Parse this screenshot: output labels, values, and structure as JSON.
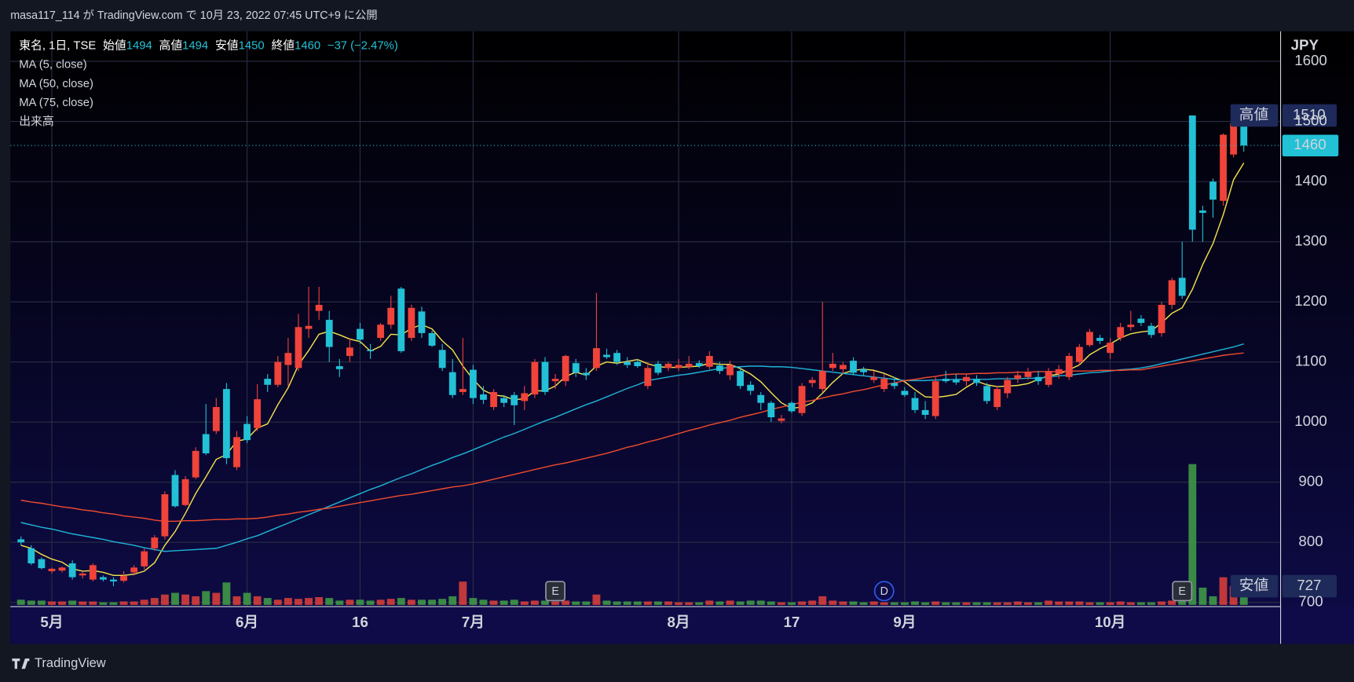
{
  "chart_data": {
    "type": "candlestick",
    "header": "masa117_114 が TradingView.com で 10月 23, 2022 07:45 UTC+9 に公開",
    "symbol": "東名, 1日, TSE",
    "legend_fields": [
      {
        "label": "始値",
        "value": 1494
      },
      {
        "label": "高値",
        "value": 1494
      },
      {
        "label": "安値",
        "value": 1450
      },
      {
        "label": "終値",
        "value": 1460
      }
    ],
    "change_label": "−37 (−2.47%)",
    "currency": "JPY",
    "brand": "TradingView",
    "rise_color": "#f0433a",
    "fall_color": "#22c1d6",
    "grid": true,
    "ylim": [
      693,
      1650
    ],
    "yticks": [
      700,
      800,
      900,
      1000,
      1100,
      1200,
      1300,
      1400,
      1500,
      1600
    ],
    "categories": [
      null,
      null,
      null,
      "5月",
      null,
      null,
      null,
      null,
      null,
      null,
      null,
      null,
      null,
      null,
      null,
      null,
      null,
      null,
      null,
      null,
      null,
      null,
      "6月",
      null,
      null,
      null,
      null,
      null,
      null,
      null,
      null,
      null,
      null,
      "16",
      null,
      null,
      null,
      null,
      null,
      null,
      null,
      null,
      null,
      null,
      "7月",
      null,
      null,
      null,
      null,
      null,
      null,
      null,
      null,
      null,
      null,
      null,
      null,
      null,
      null,
      null,
      null,
      null,
      null,
      null,
      "8月",
      null,
      null,
      null,
      null,
      null,
      null,
      null,
      null,
      null,
      null,
      "17",
      null,
      null,
      null,
      null,
      null,
      null,
      null,
      null,
      null,
      null,
      "9月",
      null,
      null,
      null,
      null,
      null,
      null,
      null,
      null,
      null,
      null,
      null,
      null,
      null,
      null,
      null,
      null,
      null,
      null,
      null,
      "10月",
      null,
      null,
      null,
      null,
      null,
      null,
      null,
      null,
      null,
      null,
      null,
      null,
      null
    ],
    "ohlc": {
      "open": [
        805,
        790,
        772,
        752,
        753,
        765,
        745,
        738,
        742,
        738,
        736,
        750,
        760,
        790,
        810,
        912,
        862,
        908,
        980,
        985,
        1055,
        925,
        997,
        990,
        1072,
        1062,
        1095,
        1090,
        1155,
        1185,
        1170,
        1093,
        1110,
        1155,
        1120,
        1140,
        1162,
        1222,
        1140,
        1184,
        1148,
        1120,
        1083,
        1050,
        1087,
        1046,
        1025,
        1040,
        1045,
        1035,
        1046,
        1100,
        1068,
        1068,
        1098,
        1082,
        1090,
        1112,
        1115,
        1100,
        1100,
        1060,
        1097,
        1090,
        1090,
        1092,
        1098,
        1092,
        1094,
        1078,
        1085,
        1062,
        1045,
        1032,
        1002,
        1032,
        1015,
        1065,
        1055,
        1090,
        1088,
        1102,
        1088,
        1070,
        1055,
        1065,
        1052,
        1040,
        1020,
        1010,
        1072,
        1070,
        1068,
        1072,
        1060,
        1025,
        1048,
        1072,
        1075,
        1075,
        1062,
        1080,
        1075,
        1100,
        1128,
        1140,
        1115,
        1140,
        1158,
        1172,
        1160,
        1148,
        1195,
        1240,
        1510,
        1352,
        1400,
        1368,
        1445,
        1494
      ],
      "high": [
        810,
        795,
        775,
        758,
        760,
        770,
        752,
        765,
        745,
        742,
        752,
        762,
        790,
        812,
        885,
        920,
        910,
        958,
        1030,
        1040,
        1065,
        985,
        1010,
        1063,
        1080,
        1110,
        1140,
        1180,
        1225,
        1225,
        1185,
        1105,
        1140,
        1165,
        1130,
        1165,
        1210,
        1225,
        1195,
        1192,
        1152,
        1130,
        1105,
        1140,
        1095,
        1060,
        1055,
        1045,
        1050,
        1060,
        1105,
        1108,
        1080,
        1112,
        1105,
        1090,
        1215,
        1122,
        1120,
        1108,
        1105,
        1100,
        1102,
        1100,
        1105,
        1110,
        1103,
        1118,
        1100,
        1102,
        1092,
        1068,
        1050,
        1035,
        1012,
        1035,
        1065,
        1075,
        1200,
        1115,
        1100,
        1108,
        1092,
        1085,
        1080,
        1075,
        1058,
        1050,
        1035,
        1075,
        1085,
        1080,
        1080,
        1078,
        1065,
        1060,
        1075,
        1085,
        1090,
        1085,
        1090,
        1095,
        1115,
        1130,
        1155,
        1145,
        1140,
        1165,
        1185,
        1178,
        1165,
        1200,
        1240,
        1300,
        1510,
        1360,
        1405,
        1480,
        1500,
        1494
      ],
      "low": [
        795,
        762,
        755,
        748,
        750,
        738,
        740,
        735,
        735,
        727,
        733,
        745,
        755,
        786,
        805,
        858,
        860,
        905,
        945,
        980,
        930,
        920,
        965,
        985,
        1050,
        1058,
        1060,
        1085,
        1140,
        1170,
        1100,
        1075,
        1100,
        1130,
        1105,
        1135,
        1155,
        1115,
        1135,
        1140,
        1125,
        1085,
        1040,
        1045,
        1030,
        1030,
        1020,
        1025,
        995,
        1020,
        1040,
        1045,
        1055,
        1060,
        1075,
        1070,
        1085,
        1105,
        1095,
        1090,
        1090,
        1055,
        1078,
        1085,
        1085,
        1088,
        1090,
        1088,
        1080,
        1070,
        1055,
        1045,
        1020,
        1000,
        998,
        1015,
        1010,
        1058,
        1050,
        1085,
        1080,
        1078,
        1078,
        1065,
        1050,
        1055,
        1042,
        1015,
        1005,
        1005,
        1065,
        1062,
        1060,
        1060,
        1030,
        1020,
        1040,
        1065,
        1070,
        1062,
        1058,
        1072,
        1070,
        1095,
        1125,
        1130,
        1105,
        1135,
        1152,
        1160,
        1140,
        1142,
        1188,
        1205,
        1300,
        1300,
        1340,
        1360,
        1440,
        1450
      ],
      "close": [
        800,
        765,
        757,
        756,
        758,
        742,
        748,
        762,
        738,
        735,
        744,
        758,
        785,
        808,
        880,
        860,
        905,
        952,
        948,
        1025,
        940,
        975,
        970,
        1038,
        1062,
        1100,
        1115,
        1158,
        1160,
        1195,
        1125,
        1088,
        1124,
        1137,
        1118,
        1162,
        1190,
        1118,
        1190,
        1148,
        1127,
        1090,
        1045,
        1055,
        1040,
        1037,
        1050,
        1032,
        1028,
        1048,
        1100,
        1050,
        1072,
        1110,
        1082,
        1078,
        1123,
        1108,
        1100,
        1095,
        1093,
        1090,
        1082,
        1097,
        1095,
        1097,
        1093,
        1110,
        1085,
        1095,
        1060,
        1052,
        1032,
        1008,
        1006,
        1018,
        1060,
        1070,
        1085,
        1097,
        1095,
        1082,
        1083,
        1075,
        1072,
        1060,
        1045,
        1020,
        1012,
        1068,
        1068,
        1066,
        1075,
        1065,
        1035,
        1055,
        1070,
        1078,
        1083,
        1068,
        1085,
        1088,
        1110,
        1125,
        1150,
        1135,
        1132,
        1158,
        1162,
        1165,
        1145,
        1195,
        1236,
        1210,
        1320,
        1348,
        1370,
        1478,
        1497,
        1460
      ]
    },
    "indicators": [
      {
        "name": "MA (5, close)",
        "color": "#f3e04c",
        "values": [
          795,
          790,
          780,
          772,
          767,
          756,
          752,
          753,
          750,
          745,
          745,
          747,
          752,
          766,
          795,
          818,
          848,
          881,
          909,
          938,
          946,
          968,
          972,
          990,
          997,
          1029,
          1057,
          1095,
          1119,
          1146,
          1151,
          1145,
          1138,
          1134,
          1118,
          1126,
          1146,
          1145,
          1156,
          1162,
          1155,
          1135,
          1120,
          1093,
          1071,
          1053,
          1045,
          1043,
          1037,
          1039,
          1052,
          1052,
          1060,
          1076,
          1083,
          1078,
          1093,
          1100,
          1098,
          1101,
          1104,
          1097,
          1092,
          1091,
          1091,
          1092,
          1093,
          1098,
          1096,
          1096,
          1089,
          1080,
          1067,
          1049,
          1032,
          1023,
          1025,
          1032,
          1048,
          1066,
          1081,
          1086,
          1088,
          1086,
          1081,
          1074,
          1067,
          1054,
          1042,
          1041,
          1043,
          1046,
          1058,
          1068,
          1062,
          1059,
          1060,
          1061,
          1064,
          1071,
          1077,
          1080,
          1087,
          1095,
          1112,
          1122,
          1130,
          1140,
          1147,
          1150,
          1152,
          1165,
          1181,
          1190,
          1221,
          1262,
          1297,
          1345,
          1403,
          1431
        ]
      },
      {
        "name": "MA (50, close)",
        "color": "#1fb4d6",
        "values": [
          833,
          829,
          825,
          822,
          818,
          814,
          811,
          808,
          805,
          801,
          798,
          795,
          791,
          788,
          785,
          786,
          787,
          788,
          789,
          790,
          795,
          800,
          806,
          811,
          818,
          825,
          832,
          839,
          846,
          853,
          860,
          867,
          874,
          881,
          888,
          894,
          901,
          908,
          914,
          921,
          928,
          934,
          941,
          947,
          954,
          961,
          968,
          975,
          981,
          988,
          995,
          1002,
          1008,
          1015,
          1022,
          1029,
          1035,
          1042,
          1049,
          1056,
          1062,
          1069,
          1072,
          1075,
          1078,
          1080,
          1083,
          1086,
          1089,
          1091,
          1092,
          1093,
          1093,
          1092,
          1092,
          1091,
          1089,
          1087,
          1085,
          1083,
          1081,
          1079,
          1077,
          1075,
          1073,
          1071,
          1069,
          1069,
          1069,
          1070,
          1070,
          1071,
          1071,
          1071,
          1071,
          1072,
          1072,
          1072,
          1073,
          1073,
          1075,
          1077,
          1078,
          1080,
          1082,
          1083,
          1085,
          1087,
          1088,
          1090,
          1093,
          1097,
          1101,
          1105,
          1109,
          1113,
          1117,
          1121,
          1125,
          1130
        ]
      },
      {
        "name": "MA (75, close)",
        "color": "#ef4a2e",
        "values": [
          870,
          867,
          865,
          862,
          859,
          857,
          854,
          852,
          849,
          847,
          844,
          842,
          840,
          837,
          835,
          835,
          836,
          836,
          837,
          838,
          838,
          839,
          839,
          840,
          842,
          845,
          847,
          850,
          852,
          855,
          857,
          860,
          863,
          866,
          869,
          872,
          875,
          878,
          880,
          883,
          886,
          889,
          892,
          894,
          897,
          901,
          905,
          909,
          913,
          917,
          921,
          925,
          929,
          932,
          936,
          940,
          944,
          948,
          953,
          958,
          962,
          967,
          971,
          976,
          981,
          986,
          990,
          995,
          999,
          1003,
          1008,
          1012,
          1016,
          1021,
          1025,
          1029,
          1033,
          1036,
          1040,
          1044,
          1047,
          1051,
          1054,
          1058,
          1062,
          1065,
          1069,
          1071,
          1074,
          1076,
          1079,
          1080,
          1080,
          1081,
          1081,
          1082,
          1082,
          1083,
          1083,
          1084,
          1084,
          1084,
          1085,
          1085,
          1085,
          1086,
          1086,
          1086,
          1087,
          1087,
          1090,
          1093,
          1096,
          1099,
          1102,
          1105,
          1108,
          1111,
          1113,
          1115
        ]
      }
    ],
    "volume": {
      "name": "出来高",
      "ylim": [
        0,
        200
      ],
      "rise_color": "#e0413a",
      "fall_color": "#43a047",
      "values": [
        6,
        5,
        5,
        4,
        4,
        5,
        4,
        4,
        3,
        3,
        4,
        4,
        6,
        8,
        12,
        14,
        12,
        10,
        16,
        14,
        26,
        10,
        14,
        10,
        8,
        6,
        8,
        7,
        8,
        9,
        8,
        5,
        6,
        6,
        5,
        6,
        7,
        8,
        6,
        6,
        6,
        7,
        10,
        27,
        8,
        6,
        5,
        5,
        6,
        4,
        5,
        5,
        4,
        5,
        4,
        4,
        12,
        5,
        4,
        4,
        4,
        4,
        4,
        4,
        3,
        3,
        3,
        5,
        4,
        5,
        4,
        5,
        5,
        4,
        3,
        3,
        4,
        5,
        10,
        5,
        4,
        4,
        3,
        4,
        3,
        3,
        3,
        4,
        3,
        4,
        3,
        3,
        3,
        3,
        3,
        3,
        3,
        4,
        3,
        3,
        5,
        4,
        4,
        4,
        3,
        3,
        3,
        4,
        3,
        3,
        3,
        4,
        5,
        18,
        163,
        20,
        10,
        32,
        22,
        10
      ]
    },
    "events": [
      {
        "index": 52,
        "label": "E"
      },
      {
        "index": 84,
        "label": "D"
      },
      {
        "index": 113,
        "label": "E"
      }
    ],
    "price_tags": {
      "high": {
        "label": "高値",
        "value": 1510
      },
      "low": {
        "label": "安値",
        "value": 727
      },
      "last": 1460
    }
  }
}
